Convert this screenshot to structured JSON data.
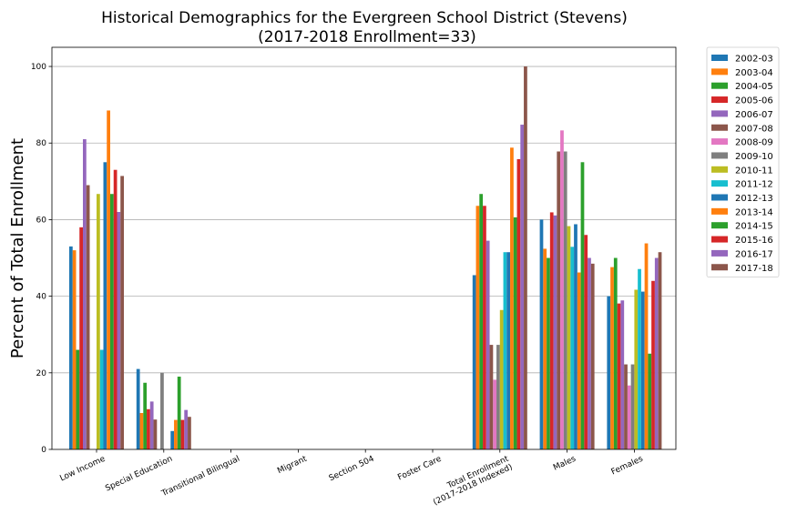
{
  "chart_data": {
    "type": "bar",
    "title": "Historical Demographics for the Evergreen School District (Stevens)",
    "subtitle": "(2017-2018 Enrollment=33)",
    "ylabel": "Percent of Total Enrollment",
    "xlabel": "",
    "ylim": [
      0,
      105
    ],
    "yticks": [
      0,
      20,
      40,
      60,
      80,
      100
    ],
    "ytick_labels": [
      "0",
      "20",
      "40",
      "60",
      "80",
      "100"
    ],
    "grid": "horizontal",
    "legend_position": "outside-right",
    "categories": [
      [
        "Low Income"
      ],
      [
        "Special Education"
      ],
      [
        "Transitional Bilingual"
      ],
      [
        "Migrant"
      ],
      [
        "Section 504"
      ],
      [
        "Foster Care"
      ],
      [
        "Total Enrollment",
        "(2017-2018 Indexed)"
      ],
      [
        "Males"
      ],
      [
        "Females"
      ]
    ],
    "series": [
      {
        "name": "2002-03",
        "color": "#1f77b4",
        "values": [
          53,
          21,
          0,
          0,
          0,
          0,
          45.5,
          60,
          40
        ]
      },
      {
        "name": "2003-04",
        "color": "#ff7f0e",
        "values": [
          52,
          9.5,
          0,
          0,
          0,
          0,
          63.6,
          52.4,
          47.6
        ]
      },
      {
        "name": "2004-05",
        "color": "#2ca02c",
        "values": [
          26,
          17.4,
          0,
          0,
          0,
          0,
          66.7,
          50,
          50
        ]
      },
      {
        "name": "2005-06",
        "color": "#d62728",
        "values": [
          58,
          10.5,
          0,
          0,
          0,
          0,
          63.6,
          61.9,
          38.1
        ]
      },
      {
        "name": "2006-07",
        "color": "#9467bd",
        "values": [
          81,
          12.5,
          0,
          0,
          0,
          0,
          54.5,
          61.1,
          38.9
        ]
      },
      {
        "name": "2007-08",
        "color": "#8c564b",
        "values": [
          69,
          7.8,
          0,
          0,
          0,
          0,
          27.3,
          77.8,
          22.2
        ]
      },
      {
        "name": "2008-09",
        "color": "#e377c2",
        "values": [
          0,
          0,
          0,
          0,
          0,
          0,
          18.2,
          83.3,
          16.7
        ]
      },
      {
        "name": "2009-10",
        "color": "#7f7f7f",
        "values": [
          0,
          20,
          0,
          0,
          0,
          0,
          27.3,
          77.8,
          22.2
        ]
      },
      {
        "name": "2010-11",
        "color": "#bcbd22",
        "values": [
          66.7,
          0,
          0,
          0,
          0,
          0,
          36.4,
          58.3,
          41.7
        ]
      },
      {
        "name": "2011-12",
        "color": "#17becf",
        "values": [
          26,
          0,
          0,
          0,
          0,
          0,
          51.5,
          52.9,
          47.1
        ]
      },
      {
        "name": "2012-13",
        "color": "#1f77b4",
        "values": [
          75,
          4.8,
          0,
          0,
          0,
          0,
          51.5,
          58.8,
          41.2
        ]
      },
      {
        "name": "2013-14",
        "color": "#ff7f0e",
        "values": [
          88.5,
          7.7,
          0,
          0,
          0,
          0,
          78.8,
          46.2,
          53.8
        ]
      },
      {
        "name": "2014-15",
        "color": "#2ca02c",
        "values": [
          66.7,
          19,
          0,
          0,
          0,
          0,
          60.6,
          75,
          25
        ]
      },
      {
        "name": "2015-16",
        "color": "#d62728",
        "values": [
          73,
          7.7,
          0,
          0,
          0,
          0,
          75.8,
          56,
          44
        ]
      },
      {
        "name": "2016-17",
        "color": "#9467bd",
        "values": [
          62,
          10.3,
          0,
          0,
          0,
          0,
          84.8,
          50,
          50
        ]
      },
      {
        "name": "2017-18",
        "color": "#8c564b",
        "values": [
          71.4,
          8.5,
          0,
          0,
          0,
          0,
          100,
          48.5,
          51.5
        ]
      }
    ]
  }
}
